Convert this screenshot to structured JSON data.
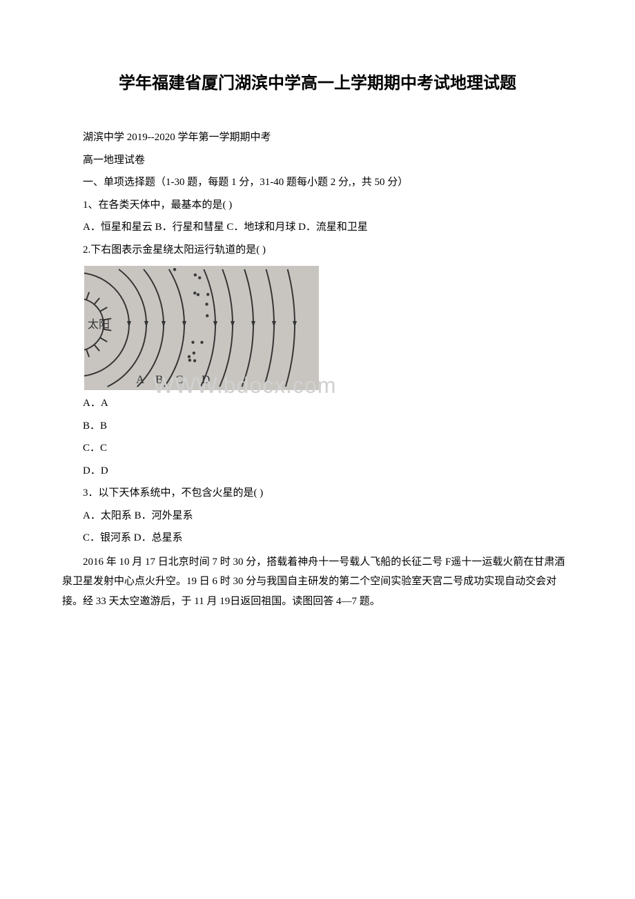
{
  "title": "学年福建省厦门湖滨中学高一上学期期中考试地理试题",
  "header1": "湖滨中学 2019--2020 学年第一学期期中考",
  "header2": "高一地理试卷",
  "section": "一、单项选择题（1-30 题，每题 1 分，31-40 题每小题 2 分,，共 50 分）",
  "q1": "1、在各类天体中，最基本的是( )",
  "q1_options": "A．恒星和星云 B．行星和彗星 C．地球和月球 D．流星和卫星",
  "q2": "2.下右图表示金星绕太阳运行轨道的是( )",
  "q2_a": "A．A",
  "q2_b": "B．B",
  "q2_c": "C．C",
  "q2_d": "D．D",
  "q3": "3．以下天体系统中，不包含火星的是( )",
  "q3_options1": " A．太阳系 B．河外星系",
  "q3_options2": " C．银河系 D．总星系",
  "passage": "2016 年 10 月 17 日北京时间 7 时 30 分，搭载着神舟十一号载人飞船的长征二号 F遥十一运载火箭在甘肃酒泉卫星发射中心点火升空。19 日 6 时 30 分与我国自主研发的第二个空间实验室天宫二号成功实现自动交会对接。经 33 天太空邀游后，于 11 月 19日返回祖国。读图回答 4—7 题。",
  "diagram": {
    "sun_label": "太阳",
    "orbit_labels": [
      "A",
      "B",
      "C",
      "D"
    ],
    "background_color": "#c8c5c0",
    "line_color": "#353535",
    "sun_color": "#c8c5c0",
    "asteroid_color": "#3a3a3a"
  },
  "watermark": "WWW.bdocx.com"
}
